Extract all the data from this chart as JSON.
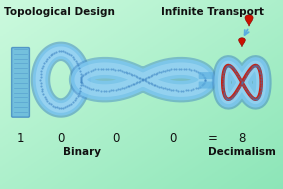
{
  "title_left": "Topological Design",
  "title_right": "Infinite Transport",
  "binary_word": "Binary",
  "decimal_word": "Decimalism",
  "bg_color_left": "#a8f0d0",
  "bg_color_right": "#50d898",
  "blue_fill": "#7ec8f0",
  "blue_mid": "#5aaee0",
  "blue_dark": "#3a80c0",
  "blue_light": "#b0dff8",
  "red_color": "#cc1100",
  "text_color": "#111111",
  "title_fontsize": 7.5,
  "label_fontsize": 8.5,
  "word_fontsize": 7.5,
  "xlim": [
    0,
    10
  ],
  "ylim": [
    0,
    7
  ]
}
